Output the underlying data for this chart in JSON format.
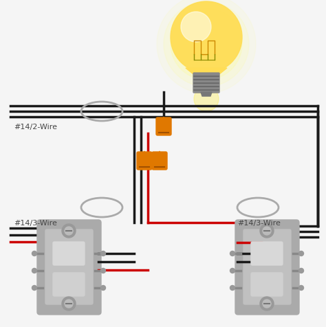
{
  "bg_color": "#f5f5f5",
  "wire_black": "#1a1a1a",
  "wire_red": "#cc0000",
  "wire_white": "#dddddd",
  "connector_orange": "#e07800",
  "switch_gray": "#b0b0b0",
  "switch_light": "#d0d0d0",
  "switch_dark": "#808080",
  "bulb_yellow": "#ffdd44",
  "bulb_amber": "#ffaa00",
  "bulb_white": "#fffff0",
  "cable_oval": "#aaaaaa",
  "label_color": "#444444",
  "label_14_2": "#14/2-Wire",
  "label_14_3_L": "#14/3-Wire",
  "label_14_3_R": "#14/3-Wire",
  "lw": 2.5
}
